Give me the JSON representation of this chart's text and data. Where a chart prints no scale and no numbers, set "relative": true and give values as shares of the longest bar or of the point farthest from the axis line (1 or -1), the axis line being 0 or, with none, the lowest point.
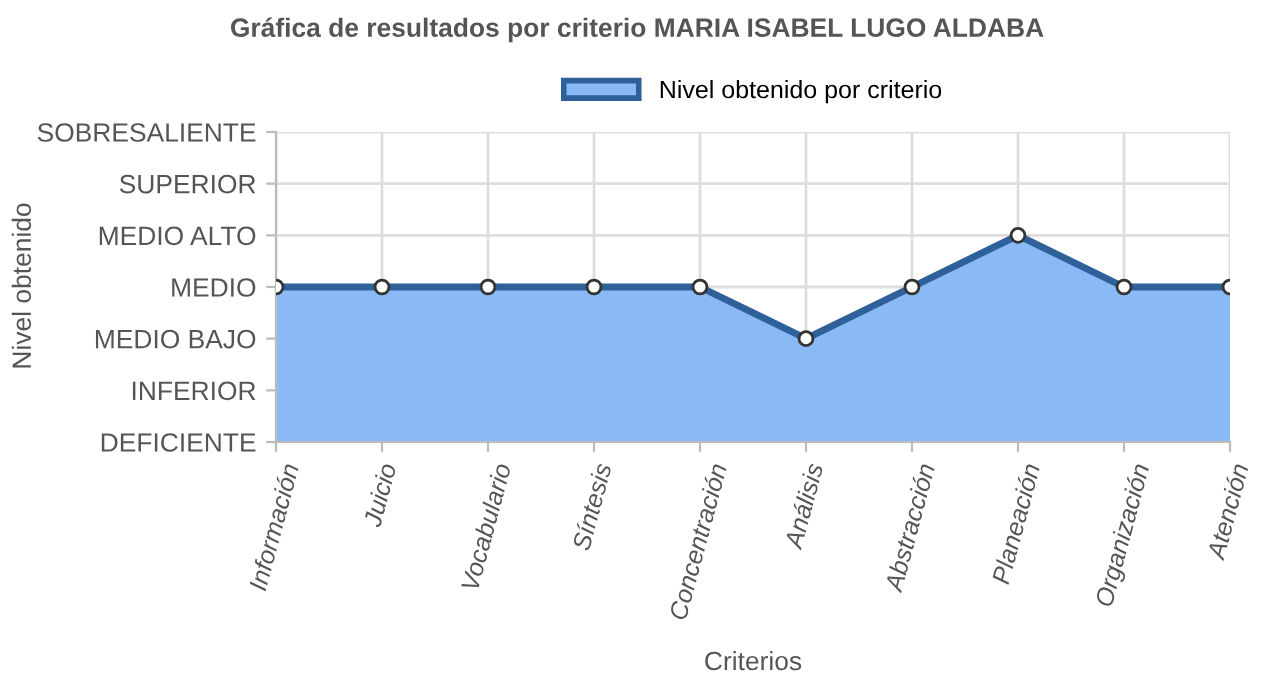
{
  "chart_data": {
    "type": "area",
    "title": "Gráfica de resultados por criterio MARIA ISABEL LUGO ALDABA",
    "xlabel": "Criterios",
    "annotations": [
      "Nivel obtenido"
    ],
    "categories": [
      "Información",
      "Juicio",
      "Vocabulario",
      "Síntesis",
      "Concentración",
      "Análisis",
      "Abstracción",
      "Planeación",
      "Organización",
      "Atención"
    ],
    "y_categories": [
      "SOBRESALIENTE",
      "SUPERIOR",
      "MEDIO ALTO",
      "MEDIO",
      "MEDIO BAJO",
      "INFERIOR",
      "DEFICIENTE"
    ],
    "relative": true,
    "series": [
      {
        "name": "Nivel obtenido por criterio",
        "color": "#89baf5",
        "values": [
          0.75,
          0.75,
          0.75,
          0.75,
          0.75,
          0.5,
          0.75,
          1,
          0.75,
          0.75
        ]
      }
    ],
    "grid": true,
    "legend": "top",
    "marker": "circle",
    "line_style": "solid"
  }
}
